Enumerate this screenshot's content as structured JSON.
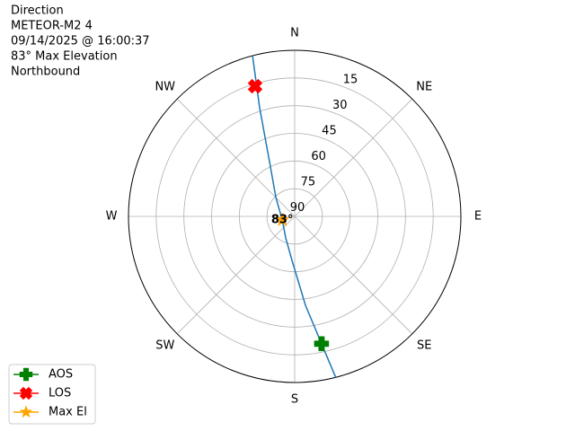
{
  "chart_data": {
    "type": "polar",
    "text_lines": [
      "Direction",
      "METEOR-M2 4",
      "09/14/2025 @ 16:00:37",
      "83° Max Elevation",
      "Northbound"
    ],
    "rlim": [
      90,
      0
    ],
    "rticks": [
      15,
      30,
      45,
      60,
      75,
      90
    ],
    "theta_ticks": [
      {
        "value": 0,
        "label": "N"
      },
      {
        "value": 45,
        "label": "NE"
      },
      {
        "value": 90,
        "label": "E"
      },
      {
        "value": 135,
        "label": "SE"
      },
      {
        "value": 180,
        "label": "S"
      },
      {
        "value": 225,
        "label": "SW"
      },
      {
        "value": 270,
        "label": "W"
      },
      {
        "value": 315,
        "label": "NW"
      }
    ],
    "grid": true,
    "track": {
      "color": "#1f77b4",
      "azimuth": [
        345.3,
        342.1,
        335.3,
        315,
        254,
        202.6,
        183.5,
        173.1,
        168.1,
        165.7
      ],
      "elevation": [
        0,
        28.2,
        57.4,
        75.6,
        83,
        77.4,
        66.1,
        41.5,
        19.5,
        0
      ]
    },
    "series": [
      {
        "name": "AOS",
        "color": "green",
        "marker": "plus",
        "azimuth": [
          168.1
        ],
        "elevation": [
          19.5
        ]
      },
      {
        "name": "LOS",
        "color": "red",
        "marker": "x",
        "azimuth": [
          343.1
        ],
        "elevation": [
          16.3
        ]
      },
      {
        "name": "Max El",
        "color": "orange",
        "marker": "star",
        "azimuth": [
          254
        ],
        "elevation": [
          83
        ],
        "value_labels": [
          "83°"
        ]
      }
    ],
    "legend": "lower left"
  }
}
